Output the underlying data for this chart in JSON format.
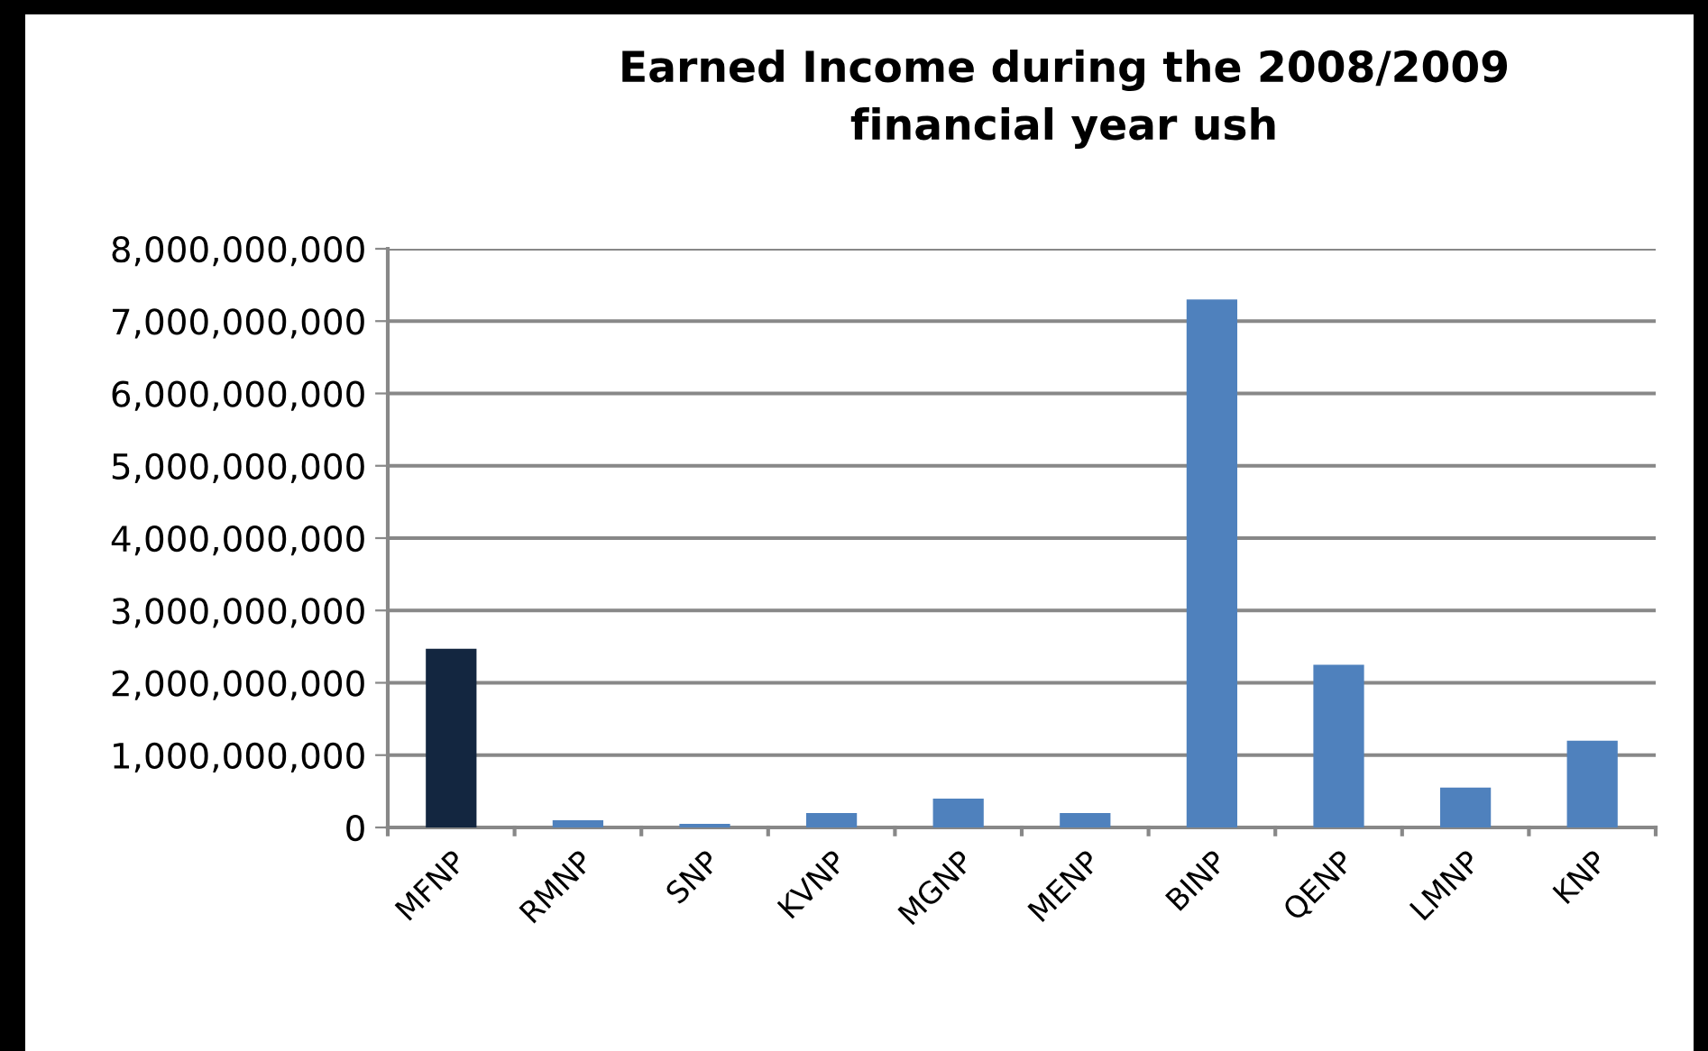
{
  "chart_data": {
    "type": "bar",
    "title": "Earned Income during the 2008/2009\nfinancial year ush",
    "categories": [
      "MFNP",
      "RMNP",
      "SNP",
      "KVNP",
      "MGNP",
      "MENP",
      "BINP",
      "QENP",
      "LMNP",
      "KNP"
    ],
    "values": [
      2470000000,
      100000000,
      50000000,
      200000000,
      400000000,
      200000000,
      7300000000,
      2250000000,
      550000000,
      1200000000
    ],
    "colors": [
      "#132640",
      "#4f81bd",
      "#4f81bd",
      "#4f81bd",
      "#4f81bd",
      "#4f81bd",
      "#4f81bd",
      "#4f81bd",
      "#4f81bd",
      "#4f81bd"
    ],
    "ylim": [
      0,
      8000000000
    ],
    "yticks": [
      {
        "value": 0,
        "label": "0"
      },
      {
        "value": 1000000000,
        "label": "1,000,000,000"
      },
      {
        "value": 2000000000,
        "label": "2,000,000,000"
      },
      {
        "value": 3000000000,
        "label": "3,000,000,000"
      },
      {
        "value": 4000000000,
        "label": "4,000,000,000"
      },
      {
        "value": 5000000000,
        "label": "5,000,000,000"
      },
      {
        "value": 6000000000,
        "label": "6,000,000,000"
      },
      {
        "value": 7000000000,
        "label": "7,000,000,000"
      },
      {
        "value": 8000000000,
        "label": "8,000,000,000"
      }
    ],
    "grid": "y",
    "legend": false
  }
}
